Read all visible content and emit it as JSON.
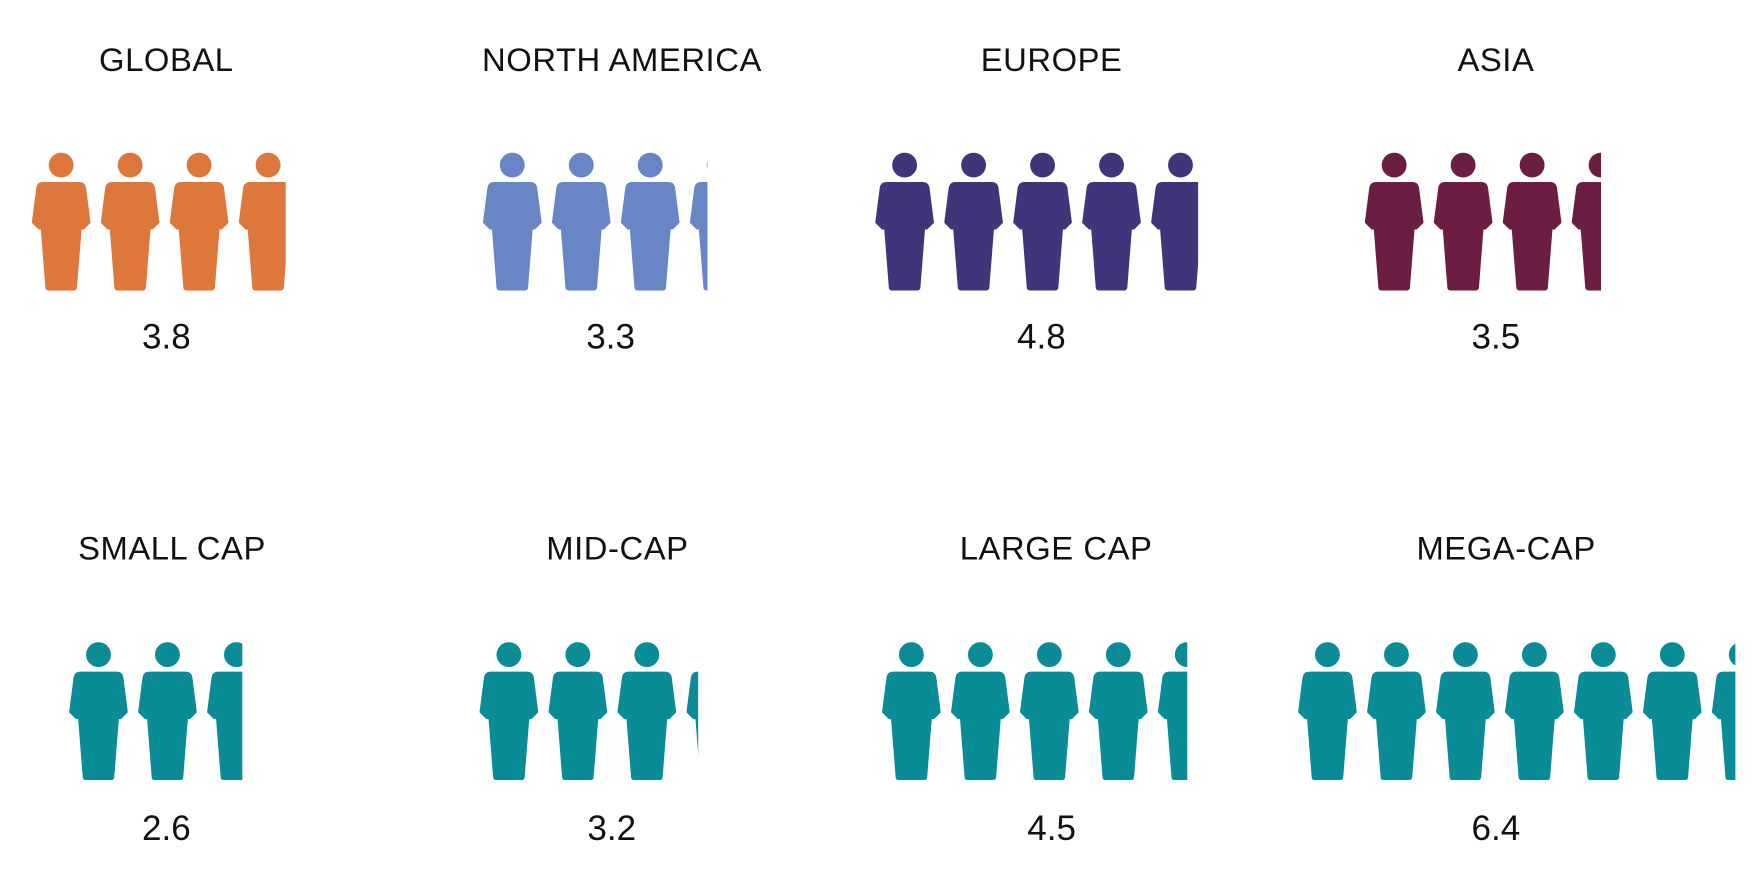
{
  "chart_data": {
    "type": "pictogram",
    "categories": [
      "GLOBAL",
      "NORTH AMERICA",
      "EUROPE",
      "ASIA",
      "SMALL CAP",
      "MID-CAP",
      "LARGE CAP",
      "MEGA-CAP"
    ],
    "values": [
      3.8,
      3.3,
      4.8,
      3.5,
      2.6,
      3.2,
      4.5,
      6.4
    ],
    "colors": [
      "#dd773c",
      "#6886c5",
      "#40357a",
      "#6b1d43",
      "#0a8c97",
      "#0a8c97",
      "#0a8c97",
      "#0a8c97"
    ]
  }
}
